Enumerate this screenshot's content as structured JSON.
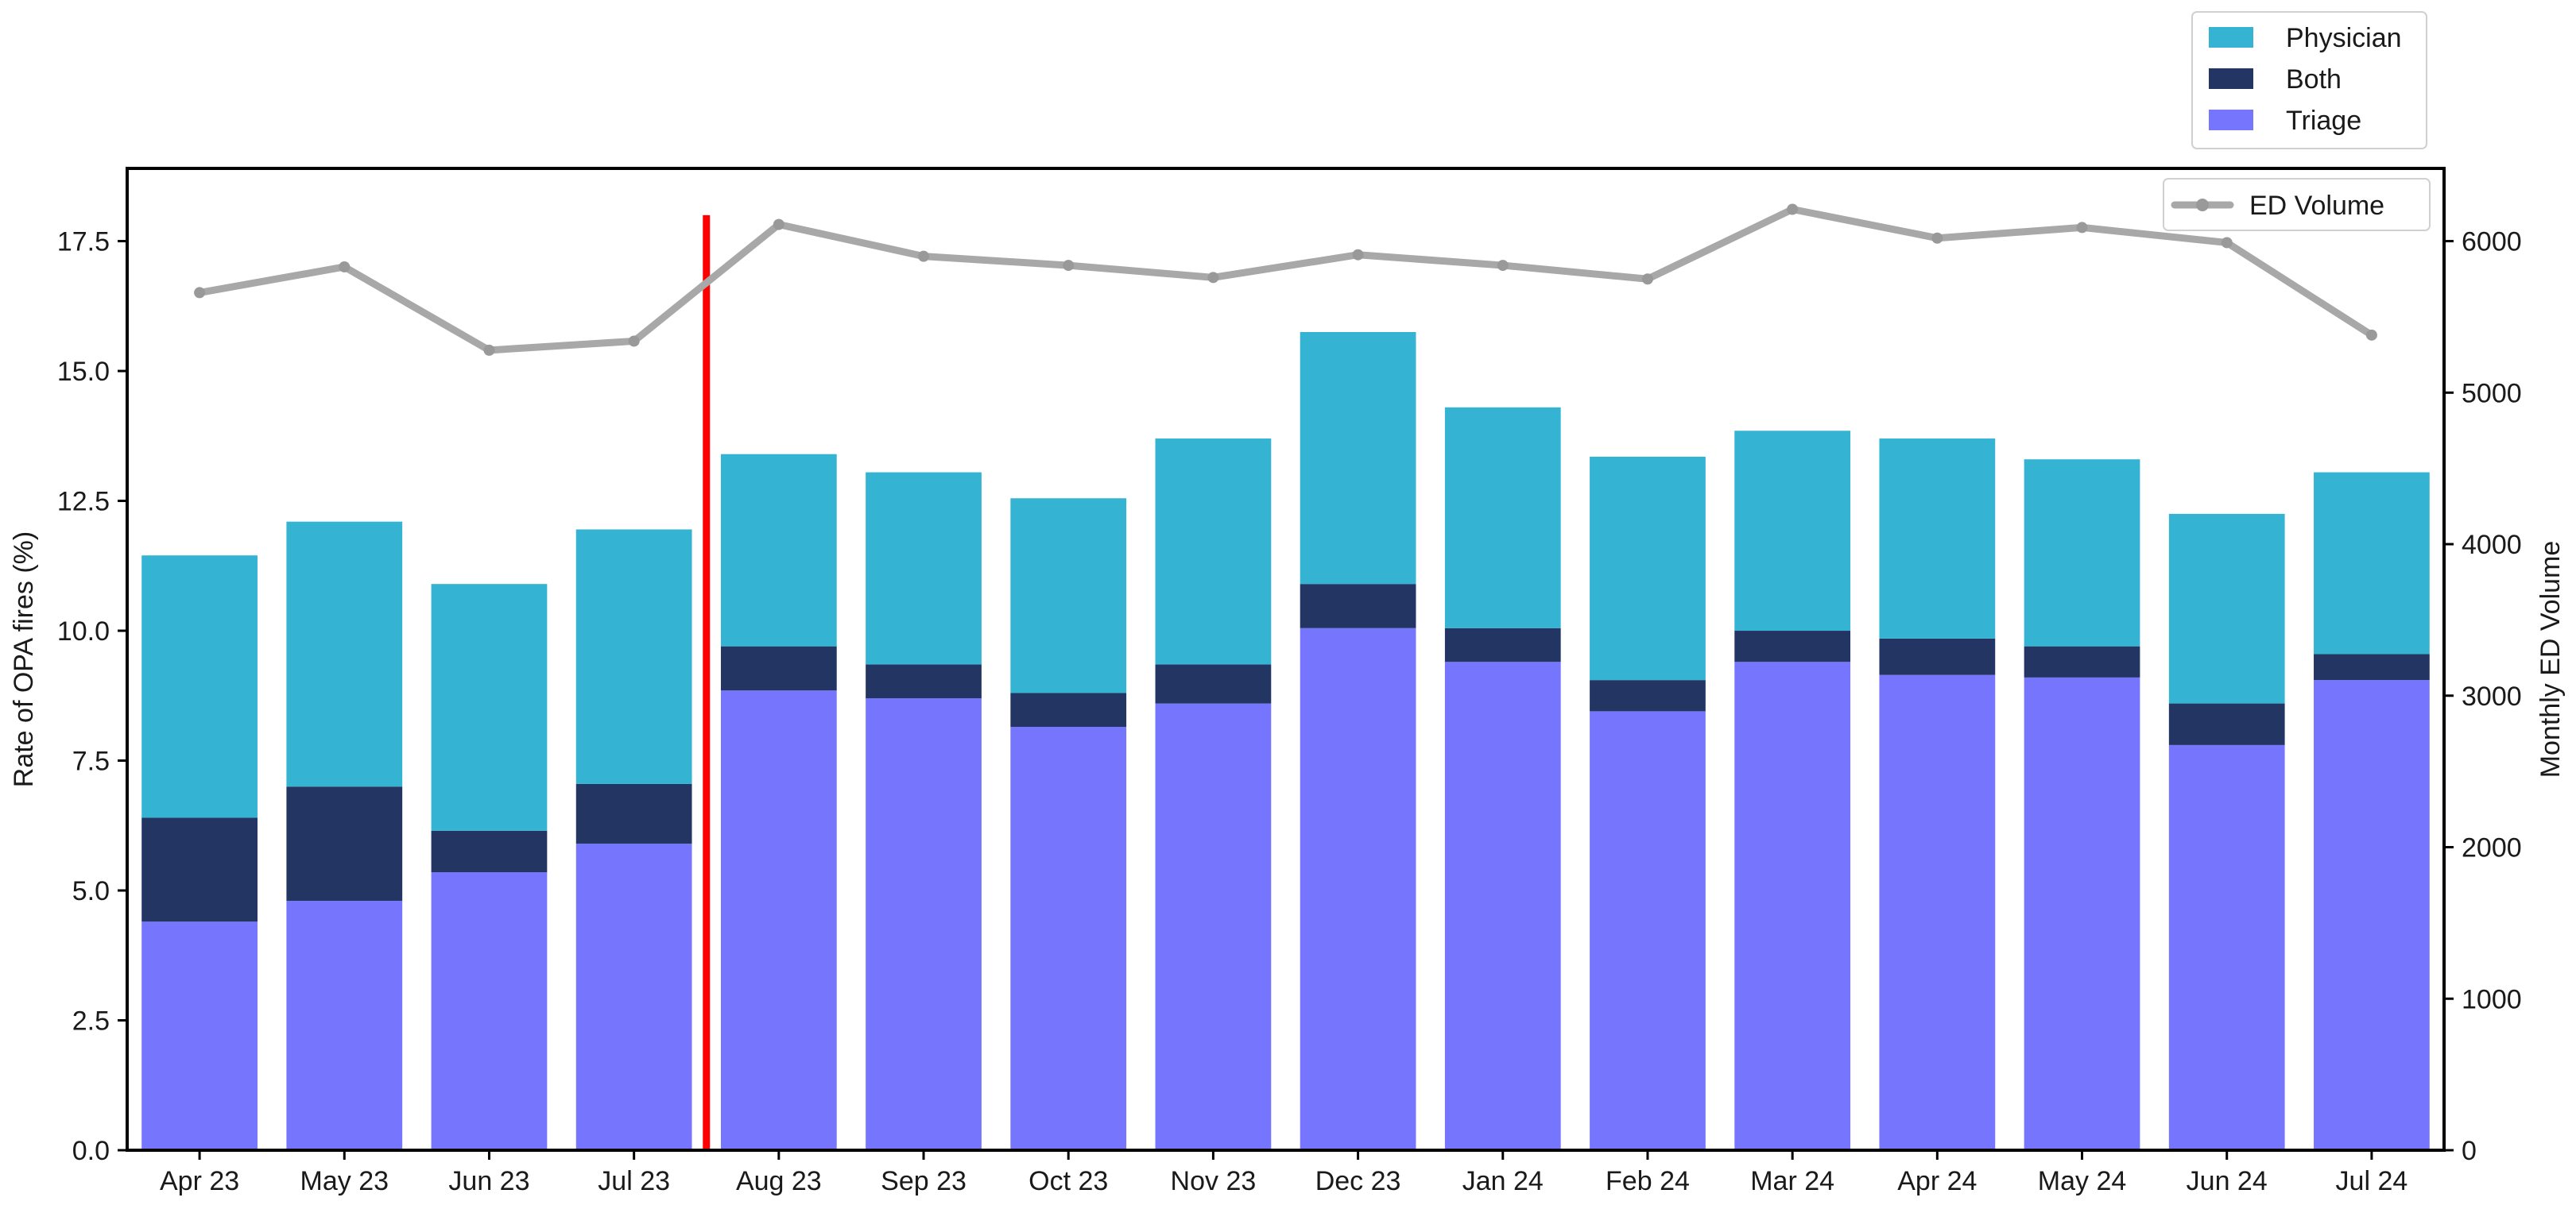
{
  "chart_data": {
    "type": "bar",
    "stacked": true,
    "title": "",
    "categories": [
      "Apr 23",
      "May 23",
      "Jun 23",
      "Jul 23",
      "Aug 23",
      "Sep 23",
      "Oct 23",
      "Nov 23",
      "Dec 23",
      "Jan 24",
      "Feb 24",
      "Mar 24",
      "Apr 24",
      "May 24",
      "Jun 24",
      "Jul 24"
    ],
    "series": [
      {
        "name": "Triage",
        "color": "#7575fd",
        "values": [
          4.4,
          4.8,
          5.35,
          5.9,
          8.85,
          8.7,
          8.15,
          8.6,
          10.05,
          9.4,
          8.45,
          9.4,
          9.15,
          9.1,
          7.8,
          9.05
        ]
      },
      {
        "name": "Both",
        "color": "#233563",
        "values": [
          2.0,
          2.2,
          0.8,
          1.15,
          0.85,
          0.65,
          0.65,
          0.75,
          0.85,
          0.65,
          0.6,
          0.6,
          0.7,
          0.6,
          0.8,
          0.5
        ]
      },
      {
        "name": "Physician",
        "color": "#34b4d2",
        "values": [
          5.05,
          5.1,
          4.75,
          4.9,
          3.7,
          3.7,
          3.75,
          4.35,
          4.85,
          4.25,
          4.3,
          3.85,
          3.85,
          3.6,
          3.65,
          3.5
        ]
      }
    ],
    "line_series": {
      "name": "ED Volume",
      "color": "#a8a8a8",
      "values": [
        5660,
        5830,
        5280,
        5340,
        6110,
        5900,
        5840,
        5760,
        5910,
        5840,
        5750,
        6210,
        6020,
        6090,
        5990,
        5380
      ]
    },
    "ylabel": "Rate of OPA fires (%)",
    "ylim": [
      0,
      18.9
    ],
    "yticks": [
      0.0,
      2.5,
      5.0,
      7.5,
      10.0,
      12.5,
      15.0,
      17.5
    ],
    "ytick_labels": [
      "0.0",
      "2.5",
      "5.0",
      "7.5",
      "10.0",
      "12.5",
      "15.0",
      "17.5"
    ],
    "y2label": "Monthly ED Volume",
    "y2lim": [
      0,
      6480
    ],
    "y2ticks": [
      0,
      1000,
      2000,
      3000,
      4000,
      5000,
      6000
    ],
    "y2tick_labels": [
      "0",
      "1000",
      "2000",
      "3000",
      "4000",
      "5000",
      "6000"
    ],
    "marker": {
      "between": [
        "Jul 23",
        "Aug 23"
      ],
      "color": "#ff0000",
      "y_top": 18.0
    },
    "legend": {
      "bars_position": "top-right outside",
      "line_position": "upper-right"
    },
    "grid": false
  }
}
